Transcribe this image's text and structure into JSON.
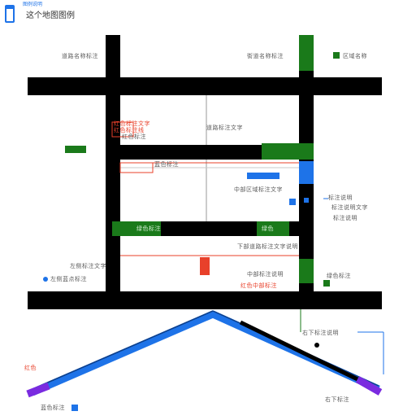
{
  "header": {
    "title": "这个地图图例",
    "subtitle": "图例说明"
  },
  "labels": {
    "top_left_street": "道路名称标注",
    "top_mid_street": "街道名称标注",
    "top_right_street": "区域名称",
    "legend_red_1": "红色标注文字",
    "legend_red_2": "红色标注线",
    "legend_red_3": "红色标注",
    "mid_road_label": "道路标注文字",
    "blue_block_label": "蓝色标注",
    "mid_center_label": "中部区域标注文字",
    "right_blue_1": "标注说明",
    "right_blue_2": "标注说明文字",
    "right_blue_3": "标注说明",
    "green_bar_label": "绿色标注",
    "green_bar_right_label": "绿色",
    "lower_mid_label": "下部道路标注文字说明",
    "lower_left_1": "左侧标注文字",
    "lower_left_2": "左侧蓝点标注",
    "lower_center_1": "中部标注说明",
    "lower_center_red": "红色中部标注",
    "right_green_label": "绿色标注",
    "bottom_right_1": "右下标注说明",
    "bottom_right_2": "右下标注",
    "bottom_left_red": "红色",
    "bottom_left_blue": "蓝色标注"
  },
  "colors": {
    "road": "#000000",
    "green": "#1a7a1a",
    "blue": "#1e73e8",
    "red": "#e8402a",
    "purple": "#7a2be0",
    "thin_line": "#9a9a9a"
  }
}
